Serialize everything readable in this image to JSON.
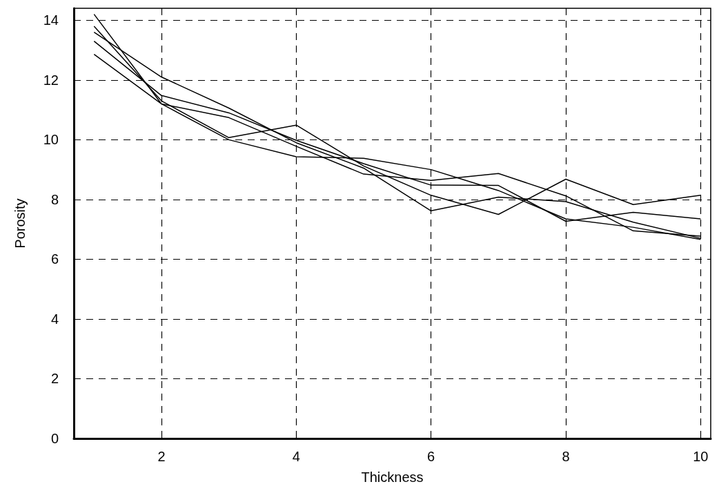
{
  "chart_data": {
    "type": "line",
    "xlabel": "Thickness",
    "ylabel": "Porosity",
    "x": [
      1,
      2,
      3,
      4,
      5,
      6,
      7,
      8,
      9,
      10
    ],
    "series": [
      {
        "color": "#000000",
        "values": [
          14.2,
          11.2,
          10.0,
          9.43,
          9.38,
          9.0,
          8.3,
          7.35,
          7.07,
          6.66
        ]
      },
      {
        "color": "#000000",
        "values": [
          13.8,
          11.3,
          10.07,
          10.49,
          9.12,
          8.14,
          7.5,
          8.68,
          7.83,
          8.14
        ]
      },
      {
        "color": "#000000",
        "values": [
          13.6,
          12.1,
          11.06,
          9.9,
          9.05,
          7.62,
          8.08,
          7.93,
          7.24,
          6.7
        ]
      },
      {
        "color": "#000000",
        "values": [
          13.3,
          11.48,
          10.9,
          9.98,
          9.2,
          8.48,
          8.47,
          7.27,
          7.57,
          7.35
        ]
      },
      {
        "color": "#000000",
        "values": [
          12.86,
          11.2,
          10.74,
          9.78,
          8.85,
          8.64,
          8.87,
          8.12,
          6.95,
          6.77
        ]
      }
    ],
    "xlim": [
      0.7,
      10.15
    ],
    "xticks": [
      2,
      4,
      6,
      8,
      10
    ],
    "ylim": [
      0,
      14.4
    ],
    "yticks": [
      0,
      2,
      4,
      6,
      8,
      10,
      12,
      14
    ],
    "grid": true,
    "marker": "none",
    "line_style": "solid"
  }
}
